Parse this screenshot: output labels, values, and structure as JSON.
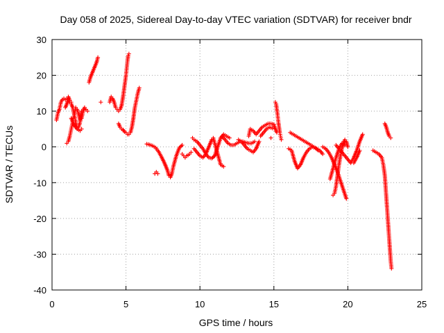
{
  "chart_data": {
    "type": "scatter",
    "title": "Day 058 of 2025, Sidereal Day-to-day VTEC variation (SDTVAR) for receiver bndr",
    "xlabel": "GPS time / hours",
    "ylabel": "SDTVAR / TECUs",
    "xlim": [
      0,
      25
    ],
    "ylim": [
      -40,
      30
    ],
    "xticks": [
      0,
      5,
      10,
      15,
      20,
      25
    ],
    "yticks": [
      -40,
      -30,
      -20,
      -10,
      0,
      10,
      20,
      30
    ],
    "grid": true,
    "marker": "+",
    "colors": {
      "series": "#ff0000",
      "axes": "#000000",
      "grid": "#a0a0a0"
    },
    "series": [
      {
        "name": "seg1",
        "x": [
          0.3,
          0.4,
          0.5,
          0.6,
          0.7,
          0.8,
          0.9,
          1.0,
          1.1,
          1.2,
          1.3
        ],
        "y": [
          7.5,
          9.5,
          10.5,
          12.5,
          13.2,
          13.5,
          13.2,
          13.5,
          14,
          13,
          12.5
        ]
      },
      {
        "name": "seg2",
        "x": [
          0.9,
          1.0,
          1.1,
          1.2,
          1.3,
          1.4,
          1.5,
          1.6,
          1.7,
          1.8,
          1.9,
          2.0
        ],
        "y": [
          11,
          12,
          13,
          12.5,
          12,
          11,
          9,
          7,
          5,
          5.5,
          7,
          10
        ]
      },
      {
        "name": "seg3",
        "x": [
          1.0,
          1.1,
          1.2,
          1.3,
          1.4,
          1.5,
          1.6,
          1.7,
          1.8,
          1.9,
          2.0,
          2.1,
          2.2,
          2.3,
          2.4
        ],
        "y": [
          1,
          1.5,
          3,
          5,
          7,
          9,
          11,
          10.5,
          9,
          7.5,
          8,
          10,
          11,
          10.5,
          10
        ]
      },
      {
        "name": "seg4",
        "x": [
          1.3,
          1.5,
          1.7,
          1.9,
          2.0
        ],
        "y": [
          8,
          6,
          5,
          4.5,
          5
        ]
      },
      {
        "name": "seg5",
        "x": [
          2.5,
          2.6,
          2.7,
          2.8,
          2.9,
          3.0,
          3.05,
          3.1
        ],
        "y": [
          18,
          19.5,
          20.5,
          21.5,
          22.5,
          23.5,
          24.2,
          25
        ]
      },
      {
        "name": "seg6",
        "x": [
          3.3
        ],
        "y": [
          12.5
        ]
      },
      {
        "name": "seg7",
        "x": [
          3.9,
          4.0,
          4.1,
          4.2,
          4.3,
          4.4,
          4.5,
          4.6,
          4.7,
          4.8,
          4.9,
          5.0,
          5.05,
          5.1,
          5.15,
          5.2
        ],
        "y": [
          12.5,
          14,
          13.5,
          12.5,
          11,
          10.5,
          10,
          10.5,
          11.5,
          14,
          17,
          20,
          22,
          24,
          25.5,
          26
        ]
      },
      {
        "name": "seg8",
        "x": [
          4.5,
          4.6,
          4.7,
          4.8,
          4.9,
          5.0,
          5.1,
          5.2,
          5.3,
          5.4,
          5.5,
          5.6,
          5.7,
          5.8,
          5.9
        ],
        "y": [
          6.5,
          5.5,
          5,
          4.8,
          4.2,
          4,
          3.5,
          3.5,
          4,
          5.5,
          8,
          11,
          13,
          15,
          16.5
        ]
      },
      {
        "name": "seg9",
        "x": [
          6.4,
          6.6,
          6.8,
          7.0,
          7.2,
          7.4,
          7.6,
          7.8,
          7.9,
          8.0,
          8.1,
          8.2,
          8.4,
          8.6,
          8.8
        ],
        "y": [
          0.8,
          0.6,
          0.3,
          -0.2,
          -1.3,
          -2.8,
          -4.5,
          -6.5,
          -8,
          -8.5,
          -7.5,
          -5.5,
          -2.5,
          -0.3,
          0.5
        ]
      },
      {
        "name": "seg10",
        "x": [
          6.95,
          7.05,
          7.15
        ],
        "y": [
          -7.5,
          -7,
          -7.5
        ]
      },
      {
        "name": "seg11",
        "x": [
          8.8,
          8.9,
          9.0,
          9.1,
          9.2,
          9.3,
          9.4
        ],
        "y": [
          -2,
          -2.5,
          -3,
          -2.5,
          -2.3,
          -2,
          -1.5
        ]
      },
      {
        "name": "seg12",
        "x": [
          9.5,
          9.6,
          9.8,
          10.0,
          10.2,
          10.4,
          10.6,
          10.8,
          11.0,
          11.2,
          11.4,
          11.6,
          11.8,
          12.0
        ],
        "y": [
          2.5,
          2,
          1.5,
          0.5,
          -0.5,
          -2,
          -3,
          -3.2,
          -2.5,
          0,
          2.5,
          3.5,
          3,
          2.5
        ]
      },
      {
        "name": "seg13",
        "x": [
          9.6,
          9.8,
          10.0,
          10.2,
          10.4,
          10.6,
          10.8,
          10.9,
          11.0,
          11.2,
          11.4,
          11.6
        ],
        "y": [
          -0.5,
          -1.5,
          -2.5,
          -3,
          -2,
          0,
          2,
          2.5,
          1,
          -2,
          -5,
          -5.5
        ]
      },
      {
        "name": "seg14",
        "x": [
          11.5,
          11.7,
          11.9,
          12.1,
          12.3,
          12.5,
          12.7,
          12.9,
          13.1,
          13.3,
          13.5,
          13.7
        ],
        "y": [
          3,
          2,
          1,
          0.5,
          0.5,
          1,
          1.5,
          1.5,
          1.2,
          1,
          1,
          1.5
        ]
      },
      {
        "name": "seg15",
        "x": [
          12.6,
          12.8,
          13.0,
          13.2,
          13.4,
          13.6,
          13.8,
          14.0
        ],
        "y": [
          2,
          1.5,
          0.5,
          -0.5,
          -1,
          -1.5,
          -0.5,
          1.5
        ]
      },
      {
        "name": "seg16",
        "x": [
          13.3,
          13.4,
          13.6,
          13.8,
          14.0,
          14.2,
          14.4,
          14.6,
          14.8,
          15.0
        ],
        "y": [
          3,
          5,
          4.5,
          3.5,
          4.5,
          5.5,
          6,
          6.5,
          6.5,
          6.3
        ]
      },
      {
        "name": "seg17",
        "x": [
          14.1,
          14.3,
          14.5,
          14.7,
          14.9
        ],
        "y": [
          3,
          4,
          5,
          5.5,
          5.2
        ]
      },
      {
        "name": "seg18",
        "x": [
          14.8
        ],
        "y": [
          2.5
        ]
      },
      {
        "name": "seg19",
        "x": [
          15.1,
          15.15,
          15.2,
          15.25,
          15.3,
          15.35,
          15.4,
          15.45,
          15.5
        ],
        "y": [
          12.5,
          12,
          10.5,
          9,
          7,
          5.5,
          4,
          3,
          2
        ]
      },
      {
        "name": "seg20",
        "x": [
          15.0,
          15.1,
          15.2
        ],
        "y": [
          6,
          5,
          4
        ]
      },
      {
        "name": "seg21",
        "x": [
          16.0,
          16.2,
          16.4,
          16.6,
          16.8,
          17.0,
          17.2,
          17.4,
          17.6,
          17.8,
          18.0
        ],
        "y": [
          -0.5,
          -1,
          -4,
          -6,
          -5,
          -3,
          -1.5,
          -0.5,
          0,
          -0.3,
          -1
        ]
      },
      {
        "name": "seg22",
        "x": [
          16.1,
          16.3,
          16.5,
          16.7,
          16.9,
          17.1,
          17.3,
          17.5,
          17.7,
          17.9,
          18.1,
          18.3
        ],
        "y": [
          4,
          3.5,
          3,
          2.5,
          2,
          1.5,
          1,
          0.5,
          0,
          -0.5,
          -1,
          -2
        ]
      },
      {
        "name": "seg23",
        "x": [
          18.3,
          18.5,
          18.7,
          18.9,
          19.1,
          19.3,
          19.5,
          19.7,
          19.9
        ],
        "y": [
          0,
          -0.5,
          -1.5,
          -3,
          -5,
          -7,
          -9.5,
          -12,
          -14.5
        ]
      },
      {
        "name": "seg24",
        "x": [
          19.0,
          19.1,
          19.2,
          19.3,
          19.4,
          19.5,
          19.6,
          19.7,
          19.8,
          19.9,
          20.0
        ],
        "y": [
          -13.5,
          -13,
          -11,
          -8,
          -5,
          -2.5,
          -0.5,
          1,
          2,
          1.5,
          0
        ]
      },
      {
        "name": "seg25",
        "x": [
          18.8,
          19.0,
          19.2,
          19.4,
          19.6,
          19.8
        ],
        "y": [
          -9,
          -6,
          -3,
          -0.5,
          1,
          0.5
        ]
      },
      {
        "name": "seg26",
        "x": [
          19.2,
          19.4,
          19.6,
          19.8,
          20.0,
          20.2,
          20.4,
          20.6,
          20.8,
          21.0
        ],
        "y": [
          0.5,
          -0.5,
          -1.5,
          -2.5,
          -3.5,
          -4.5,
          -3,
          -1,
          1.5,
          3.5
        ]
      },
      {
        "name": "seg27",
        "x": [
          20.4,
          20.6,
          20.8
        ],
        "y": [
          -4.5,
          -3,
          -1
        ]
      },
      {
        "name": "seg28",
        "x": [
          21.7,
          21.9,
          22.1,
          22.3,
          22.4,
          22.5,
          22.55,
          22.6,
          22.65,
          22.7,
          22.75,
          22.8,
          22.85,
          22.9,
          22.95
        ],
        "y": [
          -1,
          -1.5,
          -2,
          -3,
          -5,
          -8,
          -11,
          -14,
          -17,
          -20,
          -23,
          -26,
          -29,
          -32,
          -34
        ]
      },
      {
        "name": "seg29",
        "x": [
          22.5,
          22.6,
          22.7,
          22.8,
          22.9
        ],
        "y": [
          6.5,
          5.5,
          4,
          3,
          2.5
        ]
      }
    ]
  }
}
